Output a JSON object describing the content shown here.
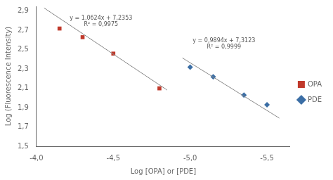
{
  "chart_data": {
    "type": "scatter",
    "xlabel": "Log [OPA] or [PDE]",
    "ylabel": "Log (Fluorescence Intensity)",
    "series": [
      {
        "type": "line",
        "color": "#888888",
        "x": [
          -4.05,
          -4.85
        ],
        "values": [
          2.93258,
          2.08266
        ]
      },
      {
        "type": "line",
        "color": "#888888",
        "x": [
          -4.95,
          -5.58
        ],
        "values": [
          2.41477,
          1.791448
        ]
      },
      {
        "name": "OPA",
        "type": "scatter",
        "marker": "square",
        "color": "#c0392b",
        "x": [
          -4.15,
          -4.3,
          -4.5,
          -4.8
        ],
        "values": [
          2.72,
          2.63,
          2.46,
          2.1
        ]
      },
      {
        "name": "PDE",
        "type": "scatter",
        "marker": "diamond",
        "color": "#3b6ea5",
        "x": [
          -5.0,
          -5.15,
          -5.35,
          -5.5
        ],
        "values": [
          2.32,
          2.22,
          2.03,
          1.93
        ]
      }
    ],
    "annotations": [
      {
        "text": "y = 1,0624x + 7,2353",
        "x": -4.42,
        "y": 2.855
      },
      {
        "text": "R² = 0,9975",
        "x": -4.42,
        "y": 2.79
      },
      {
        "text": "y = 0,9894x + 7,3123",
        "x": -5.22,
        "y": 2.62
      },
      {
        "text": "R² = 0,9999",
        "x": -5.22,
        "y": 2.555
      }
    ],
    "xlim": [
      -4.0,
      -5.65
    ],
    "ylim": [
      1.5,
      2.95
    ],
    "xticks": [
      {
        "value": -4.0,
        "label": "-4,0"
      },
      {
        "value": -4.5,
        "label": "-4,5"
      },
      {
        "value": -5.0,
        "label": "-5,0"
      },
      {
        "value": -5.5,
        "label": "-5,5"
      }
    ],
    "yticks": [
      {
        "value": 1.5,
        "label": "1,5"
      },
      {
        "value": 1.7,
        "label": "1,7"
      },
      {
        "value": 1.9,
        "label": "1,9"
      },
      {
        "value": 2.1,
        "label": "2,1"
      },
      {
        "value": 2.3,
        "label": "2,3"
      },
      {
        "value": 2.5,
        "label": "2,5"
      },
      {
        "value": 2.7,
        "label": "2,7"
      },
      {
        "value": 2.9,
        "label": "2,9"
      }
    ],
    "grid": false,
    "legend": "right"
  }
}
